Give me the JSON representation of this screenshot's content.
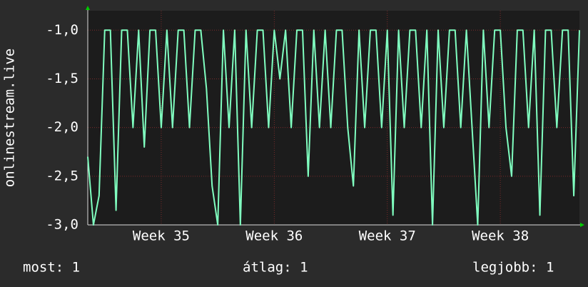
{
  "chart_data": {
    "type": "line",
    "y_label": "onlinestream.live",
    "categories": [
      null,
      null,
      null,
      null,
      null,
      null,
      null,
      null,
      null,
      null,
      null,
      null,
      null,
      "Week 35",
      null,
      null,
      null,
      null,
      null,
      null,
      null,
      null,
      null,
      null,
      null,
      null,
      null,
      null,
      null,
      null,
      null,
      null,
      null,
      "Week 36",
      null,
      null,
      null,
      null,
      null,
      null,
      null,
      null,
      null,
      null,
      null,
      null,
      null,
      null,
      null,
      null,
      null,
      null,
      null,
      "Week 37",
      null,
      null,
      null,
      null,
      null,
      null,
      null,
      null,
      null,
      null,
      null,
      null,
      null,
      null,
      null,
      null,
      null,
      null,
      null,
      "Week 38",
      null,
      null,
      null,
      null,
      null,
      null,
      null,
      null,
      null,
      null,
      null,
      null,
      null,
      null
    ],
    "series": [
      {
        "color": "#80ffc0",
        "values": [
          -2.3,
          -3.0,
          -2.7,
          -1.0,
          -1.0,
          -2.85,
          -1.0,
          -1.0,
          -2.0,
          -1.0,
          -2.2,
          -1.0,
          -1.0,
          -2.0,
          -1.0,
          -2.0,
          -1.0,
          -1.0,
          -2.0,
          -1.0,
          -1.0,
          -1.6,
          -2.6,
          -3.0,
          -1.0,
          -2.0,
          -1.0,
          -3.0,
          -1.0,
          -2.0,
          -1.0,
          -1.0,
          -2.0,
          -1.0,
          -1.5,
          -1.0,
          -2.0,
          -1.0,
          -1.0,
          -2.5,
          -1.0,
          -2.0,
          -1.0,
          -2.0,
          -1.0,
          -1.0,
          -2.0,
          -2.6,
          -1.0,
          -2.0,
          -1.0,
          -1.0,
          -2.0,
          -1.0,
          -2.9,
          -1.0,
          -2.0,
          -1.0,
          -1.0,
          -2.0,
          -1.0,
          -3.0,
          -1.0,
          -2.0,
          -1.0,
          -1.0,
          -2.0,
          -1.0,
          -2.0,
          -3.0,
          -1.0,
          -2.0,
          -1.0,
          -1.0,
          -2.0,
          -2.5,
          -1.0,
          -1.0,
          -2.0,
          -1.0,
          -2.9,
          -1.0,
          -1.0,
          -2.0,
          -1.0,
          -1.0,
          -2.7,
          -1.0
        ]
      }
    ],
    "ylim": [
      -3.0,
      -0.8
    ],
    "yticks": [
      {
        "value": -3.0,
        "label": "-3,0"
      },
      {
        "value": -2.5,
        "label": "-2,5"
      },
      {
        "value": -2.0,
        "label": "-2,0"
      },
      {
        "value": -1.5,
        "label": "-1,5"
      },
      {
        "value": -1.0,
        "label": "-1,0"
      }
    ],
    "grid": true,
    "legend": [
      "most: 1",
      "átlag: 1",
      "legjobb: 1"
    ]
  }
}
